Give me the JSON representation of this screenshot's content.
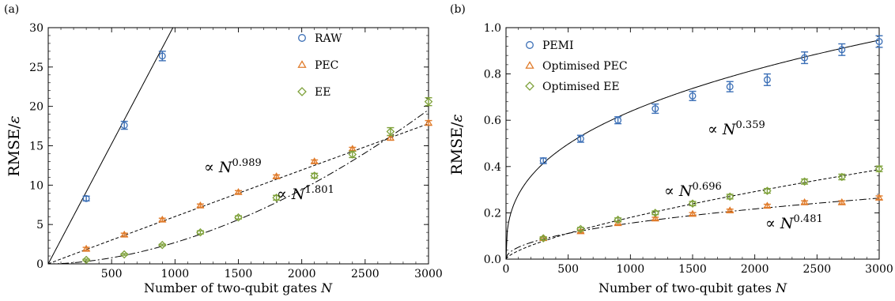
{
  "chart_data": [
    {
      "panel_label": "(a)",
      "type": "scatter",
      "xlabel": "Number of two-qubit gates",
      "xlabel_var": "N",
      "ylabel": "RMSE/",
      "ylabel_var": "ε",
      "xlim": [
        0,
        3000
      ],
      "ylim": [
        0,
        30
      ],
      "xticks": [
        500,
        1000,
        1500,
        2000,
        2500,
        3000
      ],
      "yticks": [
        0,
        5,
        10,
        15,
        20,
        25,
        30
      ],
      "legend_position": "top-right",
      "series": [
        {
          "name": "RAW",
          "marker": "circle",
          "color": "#3b6fb6",
          "x": [
            300,
            600,
            900
          ],
          "y": [
            8.3,
            17.6,
            26.4
          ],
          "err": [
            0.3,
            0.5,
            0.6
          ]
        },
        {
          "name": "PEC",
          "marker": "triangle",
          "color": "#e07b2a",
          "x": [
            300,
            600,
            900,
            1200,
            1500,
            1800,
            2100,
            2400,
            2700,
            3000
          ],
          "y": [
            1.9,
            3.7,
            5.6,
            7.4,
            9.1,
            11.1,
            13.0,
            14.6,
            16.0,
            17.9
          ],
          "err": [
            0.2,
            0.2,
            0.2,
            0.2,
            0.2,
            0.2,
            0.2,
            0.2,
            0.3,
            0.3
          ]
        },
        {
          "name": "EE",
          "marker": "diamond",
          "color": "#7ea13a",
          "x": [
            300,
            600,
            900,
            1200,
            1500,
            1800,
            2100,
            2400,
            2700,
            3000
          ],
          "y": [
            0.5,
            1.2,
            2.4,
            4.0,
            5.9,
            8.4,
            11.2,
            13.9,
            16.8,
            20.6
          ],
          "err": [
            0.1,
            0.1,
            0.1,
            0.2,
            0.2,
            0.3,
            0.3,
            0.4,
            0.5,
            0.5
          ]
        }
      ],
      "fits": [
        {
          "style": "solid",
          "kind": "line",
          "slope": 0.0305
        },
        {
          "style": "dashed",
          "kind": "power",
          "coef": 0.00648,
          "exp": 0.989
        },
        {
          "style": "dashdot",
          "kind": "power",
          "coef": 1.07e-05,
          "exp": 1.801
        }
      ],
      "annotations": [
        {
          "prefix": "∝ ",
          "base": "N",
          "sup": "0.989"
        },
        {
          "prefix": "∝ ",
          "base": "N",
          "sup": "1.801"
        }
      ]
    },
    {
      "panel_label": "(b)",
      "type": "scatter",
      "xlabel": "Number of two-qubit gates",
      "xlabel_var": "N",
      "ylabel": "RMSE/",
      "ylabel_var": "ε",
      "xlim": [
        0,
        3000
      ],
      "ylim": [
        0,
        1.0
      ],
      "xticks": [
        0,
        500,
        1000,
        1500,
        2000,
        2500,
        3000
      ],
      "yticks": [
        "0.0",
        "0.2",
        "0.4",
        "0.6",
        "0.8",
        "1.0"
      ],
      "legend_position": "top-left",
      "series": [
        {
          "name": "PEMI",
          "marker": "circle",
          "color": "#3b6fb6",
          "x": [
            300,
            600,
            900,
            1200,
            1500,
            1800,
            2100,
            2400,
            2700,
            3000
          ],
          "y": [
            0.425,
            0.52,
            0.6,
            0.65,
            0.705,
            0.745,
            0.775,
            0.87,
            0.905,
            0.94
          ],
          "err": [
            0.012,
            0.015,
            0.015,
            0.02,
            0.02,
            0.022,
            0.025,
            0.025,
            0.025,
            0.025
          ]
        },
        {
          "name": "Optimised PEC",
          "marker": "triangle",
          "color": "#e07b2a",
          "x": [
            300,
            600,
            900,
            1200,
            1500,
            1800,
            2100,
            2400,
            2700,
            3000
          ],
          "y": [
            0.09,
            0.12,
            0.155,
            0.175,
            0.195,
            0.21,
            0.23,
            0.245,
            0.245,
            0.265
          ],
          "err": [
            0.006,
            0.006,
            0.006,
            0.006,
            0.006,
            0.006,
            0.007,
            0.007,
            0.007,
            0.008
          ]
        },
        {
          "name": "Optimised EE",
          "marker": "diamond",
          "color": "#7ea13a",
          "x": [
            300,
            600,
            900,
            1200,
            1500,
            1800,
            2100,
            2400,
            2700,
            3000
          ],
          "y": [
            0.09,
            0.13,
            0.17,
            0.2,
            0.24,
            0.27,
            0.295,
            0.335,
            0.355,
            0.39
          ],
          "err": [
            0.006,
            0.007,
            0.008,
            0.008,
            0.009,
            0.01,
            0.01,
            0.011,
            0.012,
            0.012
          ]
        }
      ],
      "fits": [
        {
          "style": "solid",
          "kind": "power",
          "coef": 0.0534,
          "exp": 0.359
        },
        {
          "style": "dashed",
          "kind": "power",
          "coef": 0.00147,
          "exp": 0.696
        },
        {
          "style": "dashdot",
          "kind": "power",
          "coef": 0.0056,
          "exp": 0.481
        }
      ],
      "annotations": [
        {
          "prefix": "∝ ",
          "base": "N",
          "sup": "0.359"
        },
        {
          "prefix": "∝ ",
          "base": "N",
          "sup": "0.696"
        },
        {
          "prefix": "∝ ",
          "base": "N",
          "sup": "0.481"
        }
      ]
    }
  ]
}
